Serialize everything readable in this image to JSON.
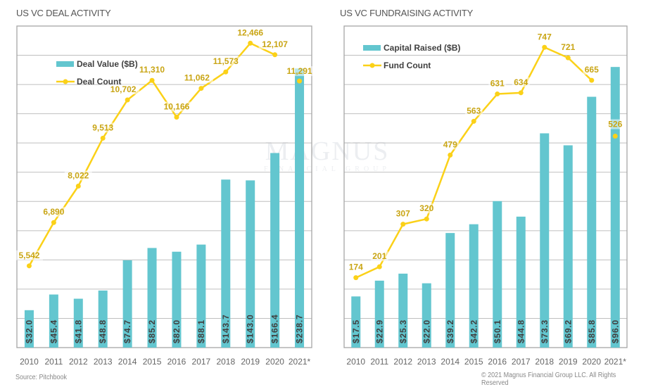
{
  "footer": {
    "source": "Source: Pitchbook",
    "copyright": "© 2021 Magnus Financial Group LLC. All Rights Reserved"
  },
  "watermark": {
    "name": "MAGNUS",
    "subtitle": "FINANCIAL GROUP"
  },
  "colors": {
    "bar": "#63c6cf",
    "line": "#fbd118",
    "line_label": "#c9a514",
    "grid": "#bfbfbf",
    "axis_text": "#666666",
    "bar_label": "#404040",
    "legend_text": "#404040"
  },
  "chart_data": [
    {
      "type": "bar",
      "title": "US VC DEAL ACTIVITY",
      "categories": [
        "2010",
        "2011",
        "2012",
        "2013",
        "2014",
        "2015",
        "2016",
        "2017",
        "2018",
        "2019",
        "2020",
        "2021*"
      ],
      "series": [
        {
          "name": "Deal Value ($B)",
          "type": "bar",
          "axis": "primary",
          "values": [
            32.0,
            45.4,
            41.8,
            48.8,
            74.7,
            85.2,
            82.0,
            88.1,
            143.7,
            143.0,
            166.4,
            238.7
          ],
          "labels": [
            "$32.0",
            "$45.4",
            "$41.8",
            "$48.8",
            "$74.7",
            "$85.2",
            "$82.0",
            "$88.1",
            "$143.7",
            "$143.0",
            "$166.4",
            "$238.7"
          ]
        },
        {
          "name": "Deal Count",
          "type": "line",
          "axis": "secondary",
          "values": [
            5542,
            6890,
            8022,
            9513,
            10702,
            11310,
            10166,
            11062,
            11573,
            12466,
            12107,
            11291
          ],
          "labels": [
            "5,542",
            "6,890",
            "8,022",
            "9,513",
            "10,702",
            "11,310",
            "10,166",
            "11,062",
            "11,573",
            "12,466",
            "12,107",
            "11,291"
          ],
          "connected_through": 10
        }
      ],
      "ylim": [
        0,
        275
      ],
      "y2lim": [
        3000,
        13000
      ],
      "grid": true,
      "legend": [
        "Deal Value ($B)",
        "Deal Count"
      ],
      "legend_placement": "top-left",
      "xlabel": "",
      "ylabel": ""
    },
    {
      "type": "bar",
      "title": "US VC FUNDRAISING ACTIVITY",
      "categories": [
        "2010",
        "2011",
        "2012",
        "2013",
        "2014",
        "2015",
        "2016",
        "2017",
        "2018",
        "2019",
        "2020",
        "2021*"
      ],
      "series": [
        {
          "name": "Capital Raised ($B)",
          "type": "bar",
          "axis": "primary",
          "values": [
            17.5,
            22.9,
            25.3,
            22.0,
            39.2,
            42.2,
            50.1,
            44.8,
            73.3,
            69.2,
            85.8,
            96.0
          ],
          "labels": [
            "$17.5",
            "$22.9",
            "$25.3",
            "$22.0",
            "$39.2",
            "$42.2",
            "$50.1",
            "$44.8",
            "$73.3",
            "$69.2",
            "$85.8",
            "$96.0"
          ]
        },
        {
          "name": "Fund Count",
          "type": "line",
          "axis": "secondary",
          "values": [
            174,
            201,
            307,
            320,
            479,
            563,
            631,
            634,
            747,
            721,
            665,
            526
          ],
          "labels": [
            "174",
            "201",
            "307",
            "320",
            "479",
            "563",
            "631",
            "634",
            "747",
            "721",
            "665",
            "526"
          ],
          "connected_through": 10
        }
      ],
      "ylim": [
        0,
        110
      ],
      "y2lim": [
        0,
        800
      ],
      "grid": true,
      "legend": [
        "Capital Raised ($B)",
        "Fund Count"
      ],
      "legend_placement": "top-left",
      "xlabel": "",
      "ylabel": ""
    }
  ]
}
